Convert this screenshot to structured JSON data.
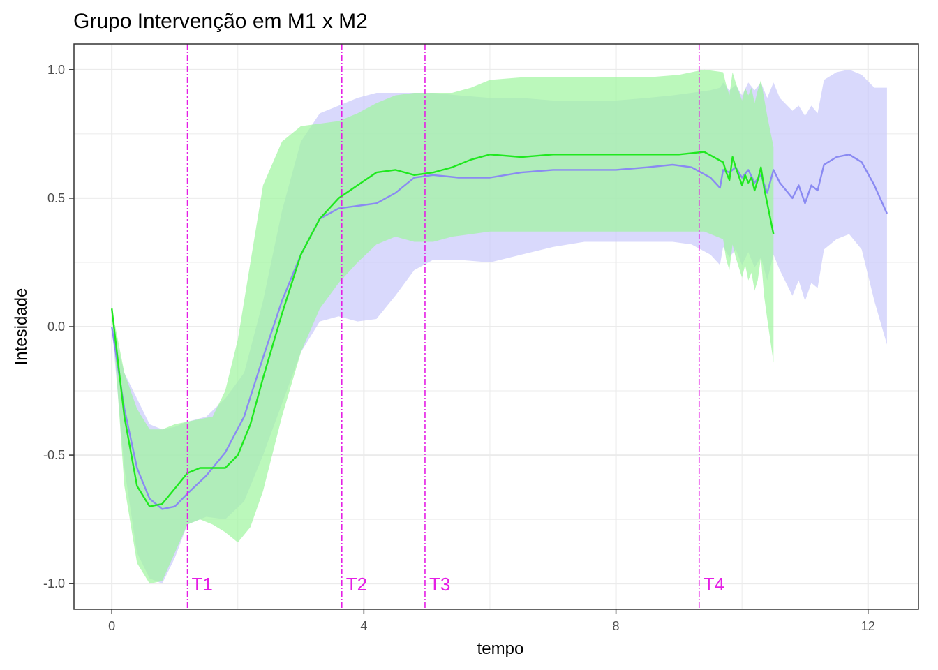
{
  "chart_data": {
    "type": "line",
    "title": "Grupo Intervenção em M1 x M2",
    "xlabel": "tempo",
    "ylabel": "Intesidade",
    "xlim": [
      -0.6,
      12.8
    ],
    "ylim": [
      -1.1,
      1.1
    ],
    "x_ticks": [
      0,
      4,
      8,
      12
    ],
    "x_tick_labels": [
      "0",
      "4",
      "8",
      "12"
    ],
    "y_ticks": [
      -1.0,
      -0.5,
      0.0,
      0.5,
      1.0
    ],
    "y_tick_labels": [
      "-1.0",
      "-0.5",
      "0.0",
      "0.5",
      "1.0"
    ],
    "grid": true,
    "legend": "none",
    "colors": {
      "series_blue_line": "#8a8af2",
      "series_blue_band": "#c9c9fb",
      "series_green_line": "#1fe81f",
      "series_green_band": "#9ef59e",
      "marker": "#e51ee5",
      "grid": "#ebebeb",
      "panel_border": "#333333"
    },
    "series": [
      {
        "x": [
          0,
          0.2,
          0.4,
          0.6,
          0.8,
          1.0,
          1.2,
          1.5,
          1.8,
          2.1,
          2.4,
          2.7,
          3.0,
          3.3,
          3.6,
          3.9,
          4.2,
          4.5,
          4.8,
          5.1,
          5.5,
          6.0,
          6.5,
          7.0,
          7.5,
          8.0,
          8.5,
          8.9,
          9.2,
          9.5,
          9.65,
          9.7,
          9.8,
          9.9,
          10.0,
          10.1,
          10.2,
          10.3,
          10.4,
          10.5,
          10.6,
          10.8,
          10.9,
          11.0,
          11.1,
          11.2,
          11.3,
          11.5,
          11.7,
          11.9,
          12.1,
          12.3
        ],
        "y": [
          0.0,
          -0.32,
          -0.55,
          -0.67,
          -0.71,
          -0.7,
          -0.65,
          -0.58,
          -0.49,
          -0.35,
          -0.12,
          0.1,
          0.28,
          0.42,
          0.46,
          0.47,
          0.48,
          0.52,
          0.58,
          0.59,
          0.58,
          0.58,
          0.6,
          0.61,
          0.61,
          0.61,
          0.62,
          0.63,
          0.62,
          0.58,
          0.54,
          0.61,
          0.6,
          0.62,
          0.58,
          0.61,
          0.56,
          0.59,
          0.52,
          0.61,
          0.56,
          0.5,
          0.55,
          0.48,
          0.55,
          0.53,
          0.63,
          0.66,
          0.67,
          0.64,
          0.55,
          0.44
        ],
        "lower": [
          0.0,
          -0.55,
          -0.88,
          -0.98,
          -1.0,
          -0.9,
          -0.77,
          -0.74,
          -0.75,
          -0.68,
          -0.5,
          -0.3,
          -0.1,
          0.02,
          0.04,
          0.02,
          0.03,
          0.12,
          0.22,
          0.26,
          0.26,
          0.25,
          0.28,
          0.31,
          0.33,
          0.33,
          0.33,
          0.33,
          0.32,
          0.28,
          0.24,
          0.31,
          0.27,
          0.3,
          0.24,
          0.29,
          0.23,
          0.27,
          0.18,
          0.28,
          0.22,
          0.12,
          0.18,
          0.1,
          0.17,
          0.15,
          0.3,
          0.34,
          0.36,
          0.3,
          0.1,
          -0.07
        ],
        "upper": [
          0.0,
          -0.18,
          -0.28,
          -0.38,
          -0.4,
          -0.39,
          -0.37,
          -0.35,
          -0.28,
          -0.18,
          0.1,
          0.45,
          0.72,
          0.83,
          0.86,
          0.89,
          0.91,
          0.91,
          0.91,
          0.91,
          0.9,
          0.89,
          0.89,
          0.88,
          0.88,
          0.88,
          0.89,
          0.9,
          0.91,
          0.92,
          0.93,
          0.95,
          0.92,
          0.94,
          0.9,
          0.95,
          0.92,
          0.95,
          0.89,
          0.95,
          0.89,
          0.84,
          0.86,
          0.82,
          0.86,
          0.83,
          0.96,
          0.99,
          1.0,
          0.98,
          0.93,
          0.93
        ]
      },
      {
        "x": [
          0,
          0.2,
          0.4,
          0.6,
          0.8,
          1.0,
          1.2,
          1.4,
          1.6,
          1.8,
          2.0,
          2.2,
          2.4,
          2.7,
          3.0,
          3.3,
          3.6,
          3.9,
          4.2,
          4.5,
          4.8,
          5.1,
          5.4,
          5.7,
          6.0,
          6.5,
          7.0,
          7.5,
          8.0,
          8.5,
          9.0,
          9.4,
          9.7,
          9.75,
          9.8,
          9.85,
          9.9,
          10.0,
          10.05,
          10.1,
          10.15,
          10.2,
          10.25,
          10.3,
          10.35,
          10.4,
          10.5
        ],
        "y": [
          0.07,
          -0.35,
          -0.62,
          -0.7,
          -0.69,
          -0.63,
          -0.57,
          -0.55,
          -0.55,
          -0.55,
          -0.5,
          -0.38,
          -0.2,
          0.05,
          0.28,
          0.42,
          0.5,
          0.55,
          0.6,
          0.61,
          0.59,
          0.6,
          0.62,
          0.65,
          0.67,
          0.66,
          0.67,
          0.67,
          0.67,
          0.67,
          0.67,
          0.68,
          0.64,
          0.6,
          0.57,
          0.66,
          0.62,
          0.55,
          0.59,
          0.56,
          0.58,
          0.53,
          0.57,
          0.62,
          0.54,
          0.48,
          0.36
        ],
        "lower": [
          0.07,
          -0.62,
          -0.92,
          -1.0,
          -0.99,
          -0.88,
          -0.77,
          -0.75,
          -0.77,
          -0.8,
          -0.84,
          -0.78,
          -0.64,
          -0.35,
          -0.1,
          0.07,
          0.17,
          0.25,
          0.32,
          0.35,
          0.33,
          0.33,
          0.35,
          0.36,
          0.37,
          0.37,
          0.37,
          0.37,
          0.37,
          0.37,
          0.37,
          0.37,
          0.34,
          0.26,
          0.22,
          0.32,
          0.27,
          0.19,
          0.24,
          0.18,
          0.21,
          0.14,
          0.18,
          0.27,
          0.12,
          0.03,
          -0.14
        ],
        "upper": [
          0.07,
          -0.18,
          -0.32,
          -0.4,
          -0.4,
          -0.38,
          -0.37,
          -0.36,
          -0.35,
          -0.25,
          -0.05,
          0.25,
          0.55,
          0.72,
          0.78,
          0.79,
          0.8,
          0.83,
          0.87,
          0.9,
          0.91,
          0.91,
          0.91,
          0.93,
          0.96,
          0.97,
          0.97,
          0.97,
          0.97,
          0.97,
          0.98,
          1.0,
          0.99,
          0.94,
          0.9,
          0.99,
          0.95,
          0.88,
          0.93,
          0.9,
          0.93,
          0.87,
          0.92,
          0.96,
          0.89,
          0.82,
          0.7
        ]
      }
    ],
    "vlines": [
      {
        "x": 1.2,
        "label": "T1"
      },
      {
        "x": 3.65,
        "label": "T2"
      },
      {
        "x": 4.97,
        "label": "T3"
      },
      {
        "x": 9.32,
        "label": "T4"
      }
    ],
    "vline_label_y": -1.0
  }
}
